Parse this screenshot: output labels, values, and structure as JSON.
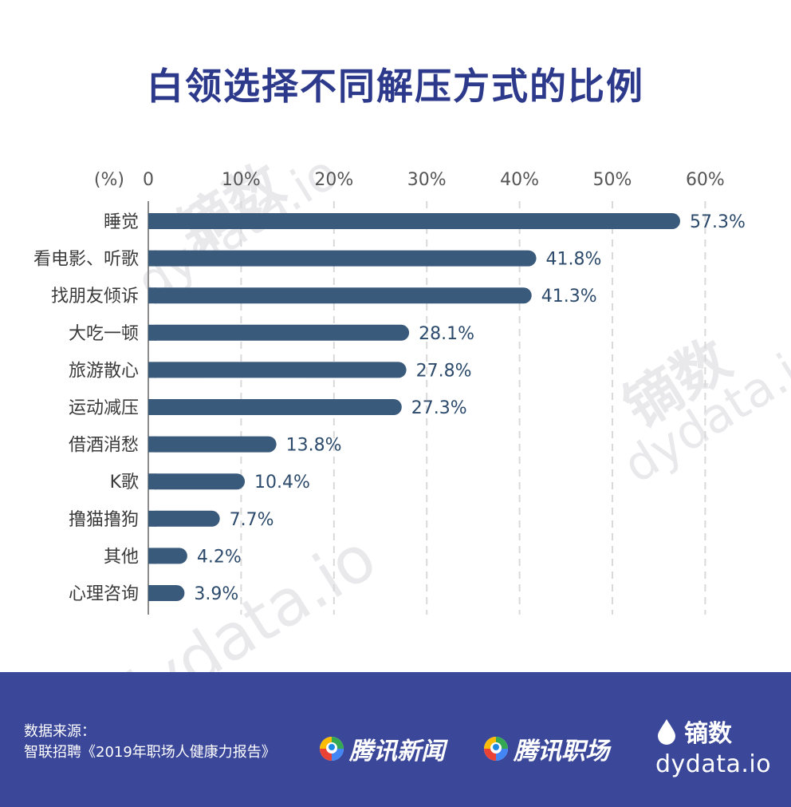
{
  "title": "白领选择不同解压方式的比例",
  "watermark": {
    "cn": "镝数",
    "en": "dydata.io"
  },
  "chart_data": {
    "type": "bar",
    "orientation": "horizontal",
    "title": "白领选择不同解压方式的比例",
    "unit_label": "(%)",
    "categories": [
      "睡觉",
      "看电影、听歌",
      "找朋友倾诉",
      "大吃一顿",
      "旅游散心",
      "运动减压",
      "借酒消愁",
      "K歌",
      "撸猫撸狗",
      "其他",
      "心理咨询"
    ],
    "values": [
      57.3,
      41.8,
      41.3,
      28.1,
      27.8,
      27.3,
      13.8,
      10.4,
      7.7,
      4.2,
      3.9
    ],
    "value_labels": [
      "57.3%",
      "41.8%",
      "41.3%",
      "28.1%",
      "27.8%",
      "27.3%",
      "13.8%",
      "10.4%",
      "7.7%",
      "4.2%",
      "3.9%"
    ],
    "xlim": [
      0,
      60
    ],
    "x_ticks": [
      0,
      10,
      20,
      30,
      40,
      50,
      60
    ],
    "x_tick_labels": [
      "0",
      "10%",
      "20%",
      "30%",
      "40%",
      "50%",
      "60%"
    ],
    "xaxis_position": "top",
    "grid": true,
    "grid_style": "dashed-vertical",
    "bar_color": "#3a5a7c",
    "label_color": "#2c4a6b"
  },
  "footer": {
    "bg_color": "#3b4799",
    "source_label": "数据来源：",
    "source_text": "智联招聘《2019年职场人健康力报告》",
    "brand1": "腾讯新闻",
    "brand2": "腾讯职场",
    "logo_cn": "镝数",
    "logo_url": "dydata.io"
  }
}
